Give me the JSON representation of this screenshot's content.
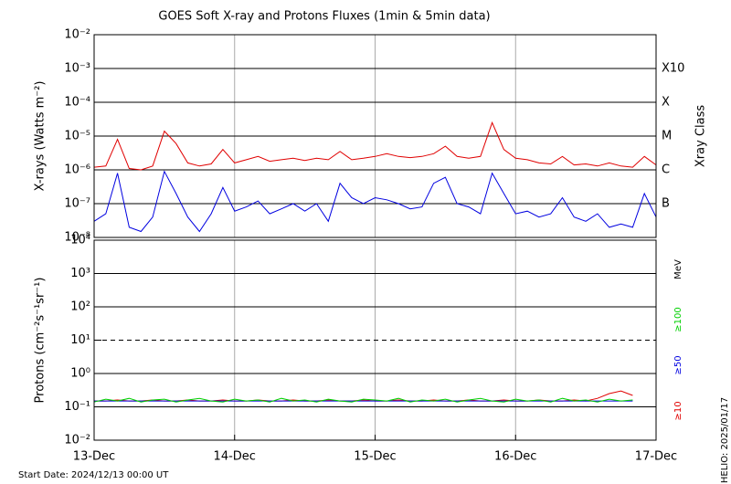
{
  "title": "GOES Soft X-ray and Protons Fluxes   (1min & 5min data)",
  "start_date": "Start Date: 2024/12/13 00:00 UT",
  "credit": "HELIO: 2025/01/17",
  "chart_data": [
    {
      "type": "line",
      "log_y": true,
      "y_label": "X-rays (Watts m⁻²)",
      "class_axis_label": "Xray Class",
      "class_labels": [
        {
          "value": 0.001,
          "label": "X10"
        },
        {
          "value": 0.0001,
          "label": "X"
        },
        {
          "value": 1e-05,
          "label": "M"
        },
        {
          "value": 1e-06,
          "label": "C"
        },
        {
          "value": 1e-07,
          "label": "B"
        }
      ],
      "xlim": [
        0,
        96
      ],
      "xticks": [
        24,
        48,
        72
      ],
      "ylim": [
        1e-08,
        0.01
      ],
      "yticks": [
        {
          "value": 0.01,
          "label": "10⁻²"
        },
        {
          "value": 0.001,
          "label": "10⁻³"
        },
        {
          "value": 0.0001,
          "label": "10⁻⁴"
        },
        {
          "value": 1e-05,
          "label": "10⁻⁵"
        },
        {
          "value": 1e-06,
          "label": "10⁻⁶"
        },
        {
          "value": 1e-07,
          "label": "10⁻⁷"
        },
        {
          "value": 1e-08,
          "label": "10⁻⁸"
        }
      ],
      "x": [
        0,
        2,
        4,
        6,
        8,
        10,
        12,
        14,
        16,
        18,
        20,
        22,
        24,
        26,
        28,
        30,
        32,
        34,
        36,
        38,
        40,
        42,
        44,
        46,
        48,
        50,
        52,
        54,
        56,
        58,
        60,
        62,
        64,
        66,
        68,
        70,
        72,
        74,
        76,
        78,
        80,
        82,
        84,
        86,
        88,
        90,
        92,
        94,
        96
      ],
      "series": [
        {
          "color": "#e00000",
          "values": [
            1.2e-06,
            1.3e-06,
            8e-06,
            1.1e-06,
            1e-06,
            1.3e-06,
            1.4e-05,
            6e-06,
            1.6e-06,
            1.3e-06,
            1.5e-06,
            4e-06,
            1.6e-06,
            2e-06,
            2.5e-06,
            1.8e-06,
            2e-06,
            2.2e-06,
            1.9e-06,
            2.2e-06,
            2e-06,
            3.5e-06,
            2e-06,
            2.2e-06,
            2.5e-06,
            3e-06,
            2.5e-06,
            2.3e-06,
            2.5e-06,
            3e-06,
            5e-06,
            2.5e-06,
            2.2e-06,
            2.5e-06,
            2.5e-05,
            4e-06,
            2.2e-06,
            2e-06,
            1.6e-06,
            1.5e-06,
            2.5e-06,
            1.4e-06,
            1.5e-06,
            1.3e-06,
            1.6e-06,
            1.3e-06,
            1.2e-06,
            2.5e-06,
            1.4e-06
          ]
        },
        {
          "color": "#0000e0",
          "values": [
            3e-08,
            5e-08,
            8e-07,
            2e-08,
            1.5e-08,
            4e-08,
            9e-07,
            2e-07,
            4e-08,
            1.5e-08,
            5e-08,
            3e-07,
            6e-08,
            8e-08,
            1.2e-07,
            5e-08,
            7e-08,
            1e-07,
            6e-08,
            1e-07,
            3e-08,
            4e-07,
            1.5e-07,
            1e-07,
            1.5e-07,
            1.3e-07,
            1e-07,
            7e-08,
            8e-08,
            4e-07,
            6e-07,
            1e-07,
            8e-08,
            5e-08,
            8e-07,
            2e-07,
            5e-08,
            6e-08,
            4e-08,
            5e-08,
            1.5e-07,
            4e-08,
            3e-08,
            5e-08,
            2e-08,
            2.5e-08,
            2e-08,
            2e-07,
            4e-08
          ]
        }
      ]
    },
    {
      "type": "line",
      "log_y": true,
      "y_label": "Protons (cm⁻²s⁻¹sr⁻¹)",
      "energy_unit": "MeV",
      "xlim": [
        0,
        96
      ],
      "xticks": [
        {
          "value": 0,
          "label": "13-Dec"
        },
        {
          "value": 24,
          "label": "14-Dec"
        },
        {
          "value": 48,
          "label": "15-Dec"
        },
        {
          "value": 72,
          "label": "16-Dec"
        },
        {
          "value": 96,
          "label": "17-Dec"
        }
      ],
      "ylim": [
        0.01,
        10000
      ],
      "yticks": [
        {
          "value": 10000,
          "label": "10⁴"
        },
        {
          "value": 1000,
          "label": "10³"
        },
        {
          "value": 100,
          "label": "10²"
        },
        {
          "value": 10,
          "label": "10¹"
        },
        {
          "value": 1,
          "label": "10⁰"
        },
        {
          "value": 0.1,
          "label": "10⁻¹"
        },
        {
          "value": 0.01,
          "label": "10⁻²"
        }
      ],
      "dashed_gridlines": [
        10
      ],
      "x": [
        0,
        2,
        4,
        6,
        8,
        10,
        12,
        14,
        16,
        18,
        20,
        22,
        24,
        26,
        28,
        30,
        32,
        34,
        36,
        38,
        40,
        42,
        44,
        46,
        48,
        50,
        52,
        54,
        56,
        58,
        60,
        62,
        64,
        66,
        68,
        70,
        72,
        74,
        76,
        78,
        80,
        82,
        84,
        86,
        88,
        90,
        92,
        94,
        96
      ],
      "series": [
        {
          "name": "≥10",
          "color": "#e00000",
          "values": [
            0.15,
            0.15,
            0.16,
            0.15,
            0.15,
            0.16,
            0.15,
            0.15,
            0.16,
            0.15,
            0.15,
            0.16,
            0.15,
            0.15,
            0.16,
            0.15,
            0.15,
            0.16,
            0.15,
            0.15,
            0.16,
            0.15,
            0.15,
            0.16,
            0.15,
            0.15,
            0.16,
            0.15,
            0.15,
            0.16,
            0.15,
            0.15,
            0.16,
            0.15,
            0.15,
            0.16,
            0.15,
            0.15,
            0.16,
            0.15,
            0.15,
            0.16,
            0.15,
            0.18,
            0.25,
            0.3,
            0.22,
            null,
            null
          ]
        },
        {
          "name": "≥50",
          "color": "#0000e0",
          "values": [
            0.15,
            0.15,
            0.15,
            0.15,
            0.15,
            0.15,
            0.15,
            0.15,
            0.15,
            0.15,
            0.15,
            0.15,
            0.15,
            0.15,
            0.15,
            0.15,
            0.15,
            0.15,
            0.15,
            0.15,
            0.15,
            0.15,
            0.15,
            0.15,
            0.15,
            0.15,
            0.15,
            0.15,
            0.15,
            0.15,
            0.15,
            0.15,
            0.15,
            0.15,
            0.15,
            0.15,
            0.15,
            0.15,
            0.15,
            0.15,
            0.15,
            0.15,
            0.15,
            0.15,
            0.15,
            0.15,
            0.15,
            null,
            null
          ]
        },
        {
          "name": "≥100",
          "color": "#00d000",
          "values": [
            0.14,
            0.17,
            0.15,
            0.18,
            0.14,
            0.16,
            0.17,
            0.14,
            0.16,
            0.18,
            0.15,
            0.14,
            0.17,
            0.15,
            0.16,
            0.14,
            0.18,
            0.15,
            0.16,
            0.14,
            0.17,
            0.15,
            0.14,
            0.17,
            0.16,
            0.15,
            0.18,
            0.14,
            0.16,
            0.15,
            0.17,
            0.14,
            0.16,
            0.18,
            0.15,
            0.14,
            0.17,
            0.15,
            0.16,
            0.14,
            0.18,
            0.15,
            0.16,
            0.14,
            0.17,
            0.15,
            0.16,
            null,
            null
          ]
        }
      ]
    }
  ]
}
